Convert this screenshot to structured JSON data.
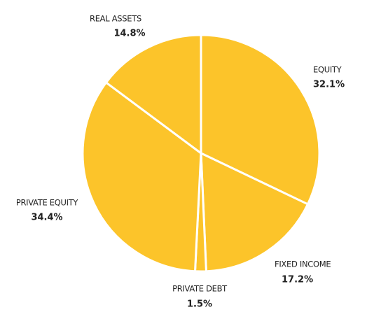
{
  "chart_data": {
    "type": "pie",
    "color": "#fcc42a",
    "categories": [
      "EQUITY",
      "FIXED INCOME",
      "PRIVATE DEBT",
      "PRIVATE EQUITY",
      "REAL ASSETS"
    ],
    "values": [
      32.1,
      17.2,
      1.5,
      34.4,
      14.8
    ],
    "value_labels": [
      "32.1%",
      "17.2%",
      "1.5%",
      "34.4%",
      "14.8%"
    ]
  }
}
